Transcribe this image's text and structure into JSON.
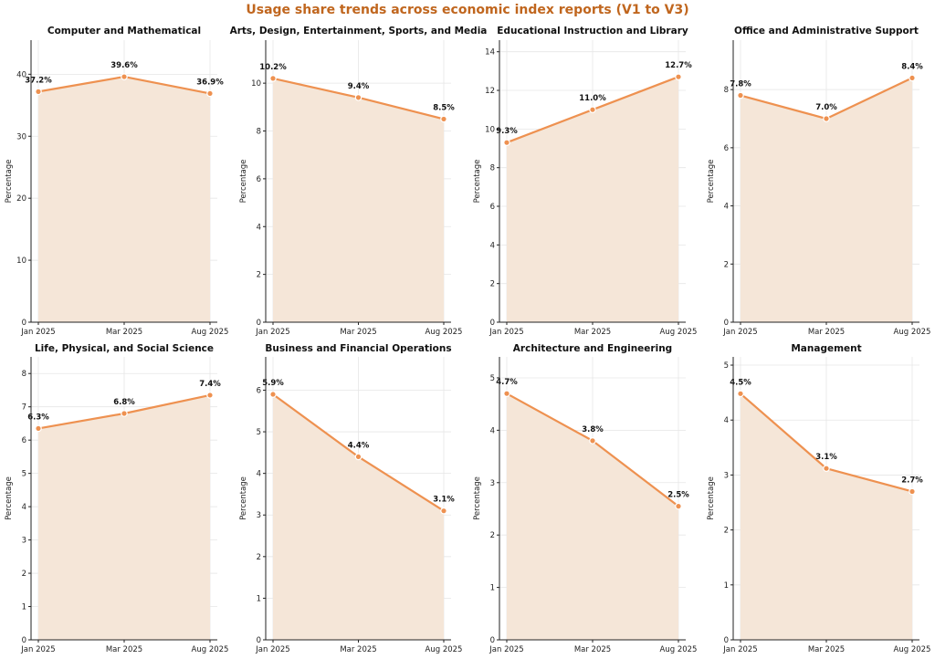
{
  "figure_title": "Usage share trends across economic index reports (V1 to V3)",
  "colors": {
    "line": "#ee9150",
    "area": "#f5e6d8",
    "title": "#c0661e"
  },
  "chart_data": [
    {
      "type": "area",
      "title": "Computer and Mathematical",
      "categories": [
        "Jan 2025",
        "Mar 2025",
        "Aug 2025"
      ],
      "values": [
        37.2,
        39.6,
        36.9
      ],
      "labels": [
        "37.2%",
        "39.6%",
        "36.9%"
      ],
      "ylabel": "Percentage",
      "ylim": [
        0,
        45.5
      ],
      "yticks": [
        0,
        10,
        20,
        30,
        40
      ]
    },
    {
      "type": "area",
      "title": "Arts, Design, Entertainment, Sports, and Media",
      "categories": [
        "Jan 2025",
        "Mar 2025",
        "Aug 2025"
      ],
      "values": [
        10.2,
        9.4,
        8.5
      ],
      "labels": [
        "10.2%",
        "9.4%",
        "8.5%"
      ],
      "ylabel": "Percentage",
      "ylim": [
        0,
        11.8
      ],
      "yticks": [
        0,
        2,
        4,
        6,
        8,
        10
      ]
    },
    {
      "type": "area",
      "title": "Educational Instruction and Library",
      "categories": [
        "Jan 2025",
        "Mar 2025",
        "Aug 2025"
      ],
      "values": [
        9.3,
        11.0,
        12.7
      ],
      "labels": [
        "9.3%",
        "11.0%",
        "12.7%"
      ],
      "ylabel": "Percentage",
      "ylim": [
        0,
        14.6
      ],
      "yticks": [
        0,
        2,
        4,
        6,
        8,
        10,
        12,
        14
      ]
    },
    {
      "type": "area",
      "title": "Office and Administrative Support",
      "categories": [
        "Jan 2025",
        "Mar 2025",
        "Aug 2025"
      ],
      "values": [
        7.8,
        7.0,
        8.4
      ],
      "labels": [
        "7.8%",
        "7.0%",
        "8.4%"
      ],
      "ylabel": "Percentage",
      "ylim": [
        0,
        9.7
      ],
      "yticks": [
        0,
        2,
        4,
        6,
        8
      ]
    },
    {
      "type": "area",
      "title": "Life, Physical, and Social Science",
      "categories": [
        "Jan 2025",
        "Mar 2025",
        "Aug 2025"
      ],
      "values": [
        6.35,
        6.8,
        7.35
      ],
      "labels": [
        "6.3%",
        "6.8%",
        "7.4%"
      ],
      "ylabel": "Percentage",
      "ylim": [
        0,
        8.5
      ],
      "yticks": [
        0,
        1,
        2,
        3,
        4,
        5,
        6,
        7,
        8
      ]
    },
    {
      "type": "area",
      "title": "Business and Financial Operations",
      "categories": [
        "Jan 2025",
        "Mar 2025",
        "Aug 2025"
      ],
      "values": [
        5.9,
        4.4,
        3.1
      ],
      "labels": [
        "5.9%",
        "4.4%",
        "3.1%"
      ],
      "ylabel": "Percentage",
      "ylim": [
        0,
        6.8
      ],
      "yticks": [
        0,
        1,
        2,
        3,
        4,
        5,
        6
      ]
    },
    {
      "type": "area",
      "title": "Architecture and Engineering",
      "categories": [
        "Jan 2025",
        "Mar 2025",
        "Aug 2025"
      ],
      "values": [
        4.7,
        3.8,
        2.55
      ],
      "labels": [
        "4.7%",
        "3.8%",
        "2.5%"
      ],
      "ylabel": "Percentage",
      "ylim": [
        0,
        5.4
      ],
      "yticks": [
        0,
        1,
        2,
        3,
        4,
        5
      ]
    },
    {
      "type": "area",
      "title": "Management",
      "categories": [
        "Jan 2025",
        "Mar 2025",
        "Aug 2025"
      ],
      "values": [
        4.48,
        3.12,
        2.7
      ],
      "labels": [
        "4.5%",
        "3.1%",
        "2.7%"
      ],
      "ylabel": "Percentage",
      "ylim": [
        0,
        5.15
      ],
      "yticks": [
        0,
        1,
        2,
        3,
        4,
        5
      ]
    }
  ]
}
